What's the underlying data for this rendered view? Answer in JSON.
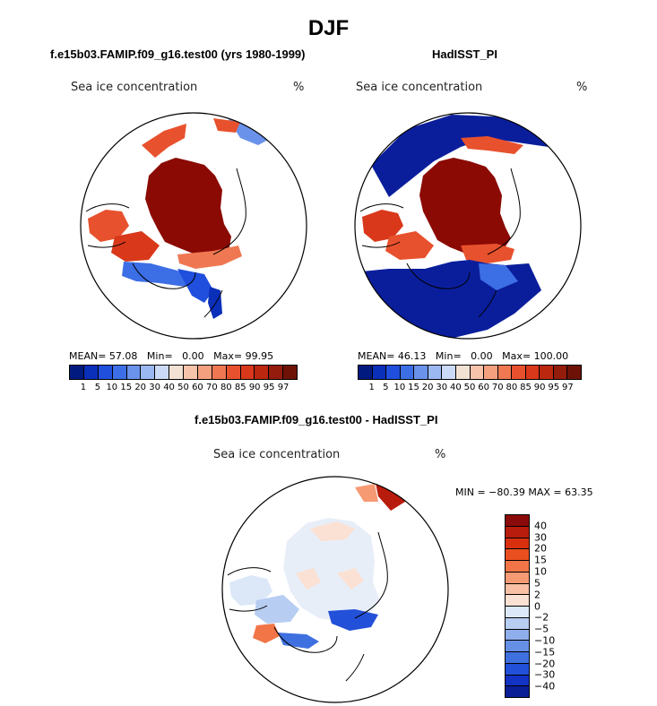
{
  "title": "DJF",
  "panels": [
    {
      "title": "f.e15b03.FAMIP.f09_g16.test00 (yrs 1980-1999)",
      "variable": "Sea ice concentration",
      "units": "%",
      "stats": {
        "mean_label": "MEAN=",
        "mean": "57.08",
        "min_label": "Min=",
        "min": "0.00",
        "max_label": "Max=",
        "max": "99.95"
      },
      "colorbar": {
        "colors": [
          "#001a80",
          "#0a2fb8",
          "#1f4fdc",
          "#3c6ee6",
          "#6a92ea",
          "#9bb8f2",
          "#cbdaf6",
          "#f2e2d4",
          "#f7c3aa",
          "#f4a07f",
          "#ef7852",
          "#e8512d",
          "#d9381a",
          "#bc2710",
          "#941c0c",
          "#6e1208"
        ],
        "labels": [
          "1",
          "5",
          "10",
          "15",
          "20",
          "30",
          "40",
          "50",
          "60",
          "70",
          "80",
          "85",
          "90",
          "95",
          "97"
        ]
      }
    },
    {
      "title": "HadISST_PI",
      "variable": "Sea ice concentration",
      "units": "%",
      "stats": {
        "mean_label": "MEAN=",
        "mean": "46.13",
        "min_label": "Min=",
        "min": "0.00",
        "max_label": "Max=",
        "max": "100.00"
      },
      "colorbar": {
        "colors": [
          "#001a80",
          "#0a2fb8",
          "#1f4fdc",
          "#3c6ee6",
          "#6a92ea",
          "#9bb8f2",
          "#cbdaf6",
          "#f2e2d4",
          "#f7c3aa",
          "#f4a07f",
          "#ef7852",
          "#e8512d",
          "#d9381a",
          "#bc2710",
          "#941c0c",
          "#6e1208"
        ],
        "labels": [
          "1",
          "5",
          "10",
          "15",
          "20",
          "30",
          "40",
          "50",
          "60",
          "70",
          "80",
          "85",
          "90",
          "95",
          "97"
        ]
      }
    }
  ],
  "difference": {
    "title": "f.e15b03.FAMIP.f09_g16.test00 - HadISST_PI",
    "variable": "Sea ice concentration",
    "units": "%",
    "range_text": "MIN = −80.39 MAX =  63.35",
    "colorbar": {
      "colors": [
        "#8b0a0a",
        "#b81c0c",
        "#d8300f",
        "#ea4f1f",
        "#f27548",
        "#f69a74",
        "#f8c0a4",
        "#fbe1d3",
        "#dce8f8",
        "#b7cdf2",
        "#8eafec",
        "#6690e6",
        "#3f70e0",
        "#2350d8",
        "#1233c4",
        "#0a1e96"
      ],
      "labels": [
        "40",
        "30",
        "20",
        "15",
        "10",
        "5",
        "2",
        "0",
        "−2",
        "−5",
        "−10",
        "−15",
        "−20",
        "−30",
        "−40"
      ]
    }
  },
  "map_colors": {
    "high_ice": "#8b0a04",
    "mid_ice": "#e8512d",
    "low_ice": "#1f3fc8",
    "very_low_ice": "#0a1e9c",
    "diff_neutral": "#e8eef8",
    "diff_pos": "#f4c2aa",
    "diff_neg": "#2f56d4"
  }
}
